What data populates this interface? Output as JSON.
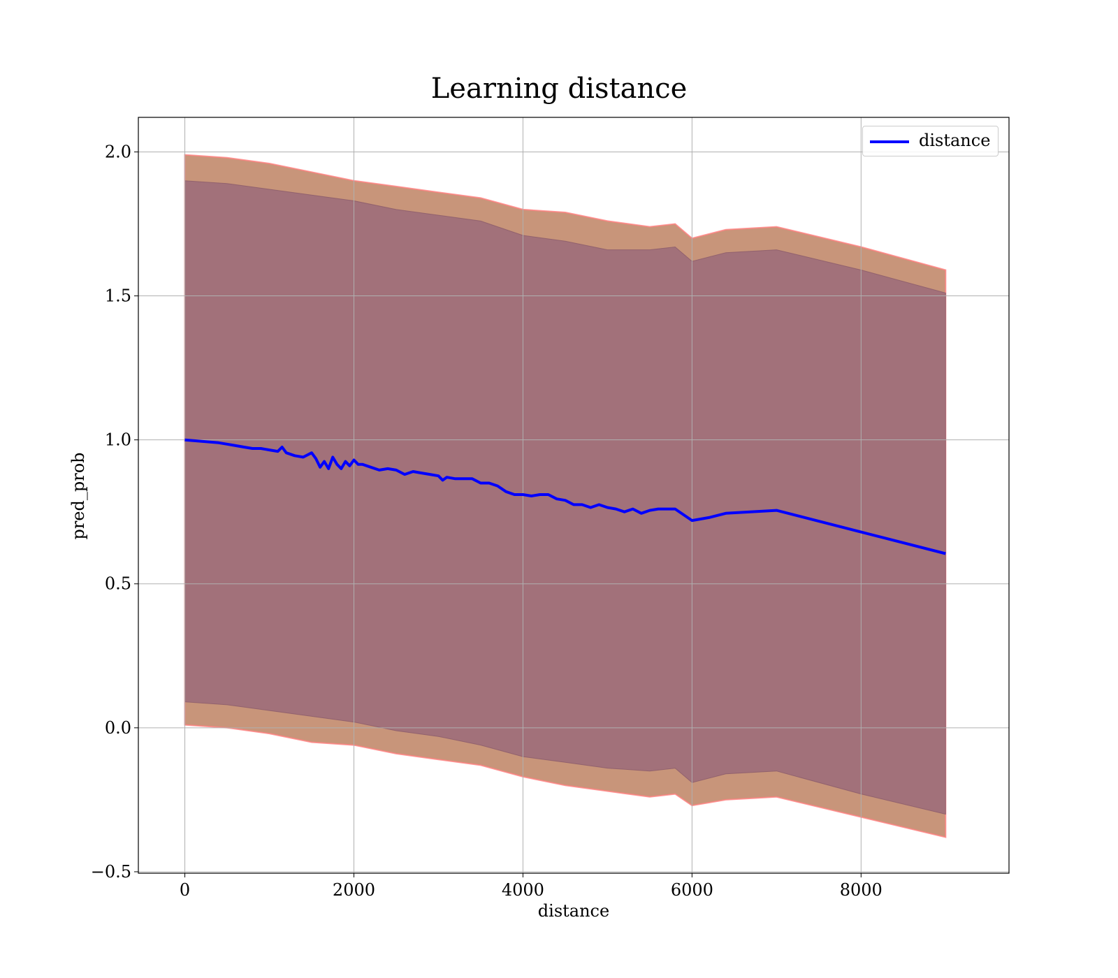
{
  "chart_data": {
    "type": "line",
    "title": "Learning distance",
    "xlabel": "distance",
    "ylabel": "pred_prob",
    "xlim": [
      -550,
      9750
    ],
    "ylim": [
      -0.505,
      2.12
    ],
    "xticks": [
      0,
      2000,
      4000,
      6000,
      8000
    ],
    "xtick_labels": [
      "0",
      "2000",
      "4000",
      "6000",
      "8000"
    ],
    "yticks": [
      -0.5,
      0.0,
      0.5,
      1.0,
      1.5,
      2.0
    ],
    "ytick_labels": [
      "−0.5",
      "0.0",
      "0.5",
      "1.0",
      "1.5",
      "2.0"
    ],
    "grid": true,
    "legend_position": "top-right",
    "series": [
      {
        "name": "distance",
        "color": "#0000ff",
        "x": [
          0,
          200,
          400,
          500,
          600,
          700,
          800,
          900,
          1000,
          1100,
          1150,
          1200,
          1300,
          1400,
          1500,
          1550,
          1600,
          1650,
          1700,
          1750,
          1800,
          1850,
          1900,
          1950,
          2000,
          2050,
          2100,
          2200,
          2300,
          2400,
          2500,
          2600,
          2700,
          2800,
          2900,
          3000,
          3050,
          3100,
          3200,
          3300,
          3400,
          3500,
          3600,
          3700,
          3800,
          3900,
          4000,
          4100,
          4200,
          4300,
          4400,
          4500,
          4600,
          4700,
          4800,
          4900,
          5000,
          5100,
          5200,
          5300,
          5400,
          5500,
          5600,
          5700,
          5800,
          6000,
          6100,
          6200,
          6400,
          7000,
          8000,
          9000
        ],
        "y": [
          1.0,
          0.995,
          0.99,
          0.985,
          0.98,
          0.975,
          0.97,
          0.97,
          0.965,
          0.96,
          0.975,
          0.955,
          0.945,
          0.94,
          0.955,
          0.935,
          0.905,
          0.925,
          0.9,
          0.94,
          0.915,
          0.9,
          0.925,
          0.91,
          0.93,
          0.915,
          0.915,
          0.905,
          0.895,
          0.9,
          0.895,
          0.88,
          0.89,
          0.885,
          0.88,
          0.875,
          0.86,
          0.87,
          0.865,
          0.865,
          0.865,
          0.85,
          0.85,
          0.84,
          0.82,
          0.81,
          0.81,
          0.805,
          0.81,
          0.81,
          0.795,
          0.79,
          0.775,
          0.775,
          0.765,
          0.775,
          0.765,
          0.76,
          0.75,
          0.76,
          0.745,
          0.755,
          0.76,
          0.76,
          0.76,
          0.72,
          0.725,
          0.73,
          0.745,
          0.755,
          0.68,
          0.605
        ]
      }
    ],
    "bands": [
      {
        "description": "outer band",
        "color": "#c8957a",
        "x": [
          0,
          500,
          1000,
          1500,
          2000,
          2500,
          3000,
          3500,
          4000,
          4500,
          5000,
          5500,
          5800,
          6000,
          6400,
          7000,
          8000,
          9000
        ],
        "upper": [
          1.99,
          1.98,
          1.96,
          1.93,
          1.9,
          1.88,
          1.86,
          1.84,
          1.8,
          1.79,
          1.76,
          1.74,
          1.75,
          1.7,
          1.73,
          1.74,
          1.67,
          1.59
        ],
        "lower": [
          0.01,
          0.0,
          -0.02,
          -0.05,
          -0.06,
          -0.09,
          -0.11,
          -0.13,
          -0.17,
          -0.2,
          -0.22,
          -0.24,
          -0.23,
          -0.27,
          -0.25,
          -0.24,
          -0.31,
          -0.38
        ]
      },
      {
        "description": "inner band",
        "color": "#a2717a",
        "x": [
          0,
          500,
          1000,
          1500,
          2000,
          2500,
          3000,
          3500,
          4000,
          4500,
          5000,
          5500,
          5800,
          6000,
          6400,
          7000,
          8000,
          9000
        ],
        "upper": [
          1.9,
          1.89,
          1.87,
          1.85,
          1.83,
          1.8,
          1.78,
          1.76,
          1.71,
          1.69,
          1.66,
          1.66,
          1.67,
          1.62,
          1.65,
          1.66,
          1.59,
          1.51
        ],
        "lower": [
          0.09,
          0.08,
          0.06,
          0.04,
          0.02,
          -0.01,
          -0.03,
          -0.06,
          -0.1,
          -0.12,
          -0.14,
          -0.15,
          -0.14,
          -0.19,
          -0.16,
          -0.15,
          -0.23,
          -0.3
        ]
      }
    ]
  }
}
